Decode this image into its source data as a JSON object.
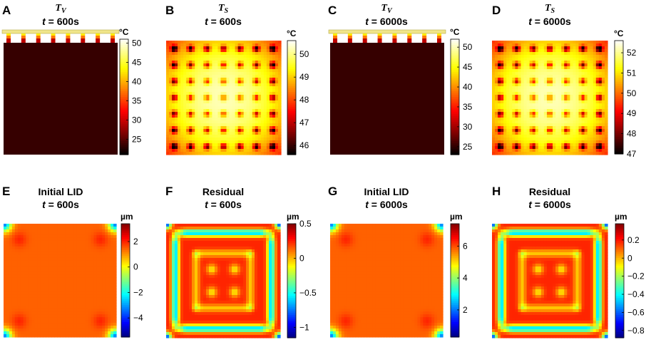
{
  "panels": [
    {
      "id": "A",
      "kind": "tv",
      "title_var": "T",
      "title_sub": "V",
      "time_label": "t = 600s",
      "unit": "°C",
      "ticks": [
        "50",
        "45",
        "40",
        "35",
        "30",
        "25"
      ],
      "ticks_v": [
        50,
        45,
        40,
        35,
        30,
        25
      ],
      "cmin": 21,
      "cmax": 51,
      "cmap": "hot",
      "heat_value": 0.08
    },
    {
      "id": "B",
      "kind": "ts",
      "title_var": "T",
      "title_sub": "S",
      "time_label": "t = 600s",
      "unit": "°C",
      "ticks": [
        "50",
        "49",
        "48",
        "47",
        "46"
      ],
      "ticks_v": [
        50,
        49,
        48,
        47,
        46
      ],
      "cmin": 45.6,
      "cmax": 50.6,
      "cmap": "hot"
    },
    {
      "id": "C",
      "kind": "tv",
      "title_var": "T",
      "title_sub": "V",
      "time_label": "t = 6000s",
      "unit": "°C",
      "ticks": [
        "50",
        "45",
        "40",
        "35",
        "30",
        "25"
      ],
      "ticks_v": [
        50,
        45,
        40,
        35,
        30,
        25
      ],
      "cmin": 23,
      "cmax": 52,
      "cmap": "hot",
      "heat_value": 0.08
    },
    {
      "id": "D",
      "kind": "ts",
      "title_var": "T",
      "title_sub": "S",
      "time_label": "t = 6000s",
      "unit": "°C",
      "ticks": [
        "52",
        "51",
        "50",
        "49",
        "48",
        "47"
      ],
      "ticks_v": [
        52,
        51,
        50,
        49,
        48,
        47
      ],
      "cmin": 47,
      "cmax": 52.6,
      "cmap": "hot"
    },
    {
      "id": "E",
      "kind": "lid",
      "title_line1": "Initial LID",
      "time_label": "t = 600s",
      "unit": "µm",
      "ticks": [
        "2",
        "0",
        "−2",
        "−4"
      ],
      "ticks_v": [
        2,
        0,
        -2,
        -4
      ],
      "cmin": -5.5,
      "cmax": 3.4,
      "cmap": "jet"
    },
    {
      "id": "F",
      "kind": "res",
      "title_line1": "Residual",
      "time_label": "t = 600s",
      "unit": "µm",
      "ticks": [
        "0.5",
        "0",
        "−0.5",
        "−1"
      ],
      "ticks_v": [
        0.5,
        0,
        -0.5,
        -1
      ],
      "cmin": -1.15,
      "cmax": 0.5,
      "cmap": "jet"
    },
    {
      "id": "G",
      "kind": "lid",
      "title_line1": "Initial LID",
      "time_label": "t = 6000s",
      "unit": "µm",
      "ticks": [
        "6",
        "4",
        "2"
      ],
      "ticks_v": [
        6,
        4,
        2
      ],
      "cmin": 0.3,
      "cmax": 7.4,
      "cmap": "jet"
    },
    {
      "id": "H",
      "kind": "res",
      "title_line1": "Residual",
      "time_label": "t = 6000s",
      "unit": "µm",
      "ticks": [
        "0.2",
        "0",
        "−0.2",
        "−0.4",
        "−0.6",
        "−0.8"
      ],
      "ticks_v": [
        0.2,
        0,
        -0.2,
        -0.4,
        -0.6,
        -0.8
      ],
      "cmin": -0.88,
      "cmax": 0.38,
      "cmap": "jet"
    }
  ]
}
